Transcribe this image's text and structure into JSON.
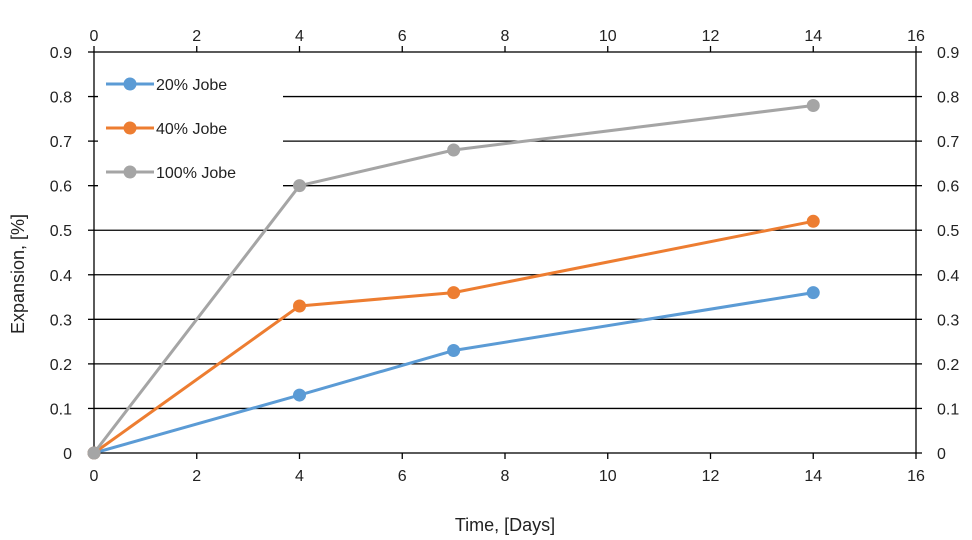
{
  "chart_data": {
    "type": "line",
    "title": "",
    "xlabel": "Time, [Days]",
    "ylabel": "Expansion, [%]",
    "xlim": [
      0,
      16
    ],
    "ylim": [
      0,
      0.9
    ],
    "x_ticks": [
      "0",
      "2",
      "4",
      "6",
      "8",
      "10",
      "12",
      "14",
      "16"
    ],
    "y_ticks": [
      "0",
      "0.1",
      "0.2",
      "0.3",
      "0.4",
      "0.5",
      "0.6",
      "0.7",
      "0.8",
      "0.9"
    ],
    "secondary_x_axis": "top",
    "secondary_y_axis": "right",
    "grid": "horizontal major",
    "legend_position": "top-left",
    "series": [
      {
        "name": "20% Jobe",
        "color": "#5B9BD5",
        "x": [
          0,
          4,
          7,
          14
        ],
        "y": [
          0,
          0.13,
          0.23,
          0.36
        ]
      },
      {
        "name": "40% Jobe",
        "color": "#ED7D31",
        "x": [
          0,
          4,
          7,
          14
        ],
        "y": [
          0,
          0.33,
          0.36,
          0.52
        ]
      },
      {
        "name": "100% Jobe",
        "color": "#A5A5A5",
        "x": [
          0,
          4,
          7,
          14
        ],
        "y": [
          0,
          0.6,
          0.68,
          0.78
        ]
      }
    ]
  }
}
